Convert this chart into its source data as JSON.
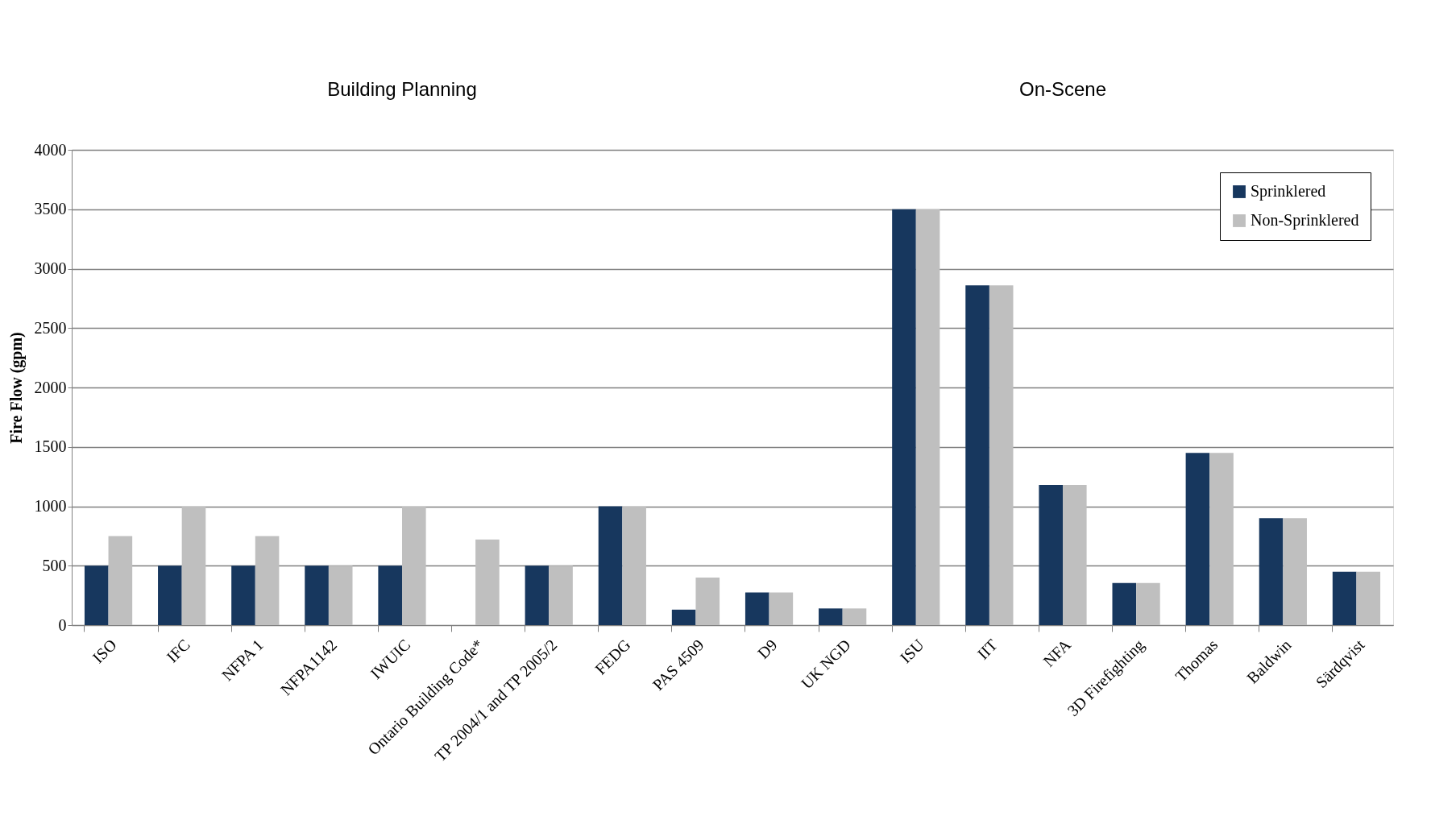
{
  "chart_data": {
    "type": "bar",
    "ylabel": "Fire Flow (gpm)",
    "categories": [
      "ISO",
      "IFC",
      "NFPA 1",
      "NFPA1142",
      "IWUIC",
      "Ontario Building Code*",
      "TP 2004/1 and TP 2005/2",
      "FEDG",
      "PAS 4509",
      "D9",
      "UK NGD",
      "ISU",
      "IIT",
      "NFA",
      "3D Firefighting",
      "Thomas",
      "Baldwin",
      "Särdqvist"
    ],
    "series": [
      {
        "name": "Sprinklered",
        "color": "#17375e",
        "values": [
          500,
          500,
          500,
          500,
          500,
          null,
          500,
          1000,
          130,
          275,
          140,
          3500,
          2860,
          1180,
          355,
          1450,
          900,
          450
        ]
      },
      {
        "name": "Non-Sprinklered",
        "color": "#bfbfbf",
        "values": [
          750,
          1000,
          750,
          500,
          1000,
          720,
          500,
          1000,
          400,
          275,
          140,
          3500,
          2860,
          1180,
          355,
          1450,
          900,
          450
        ]
      }
    ],
    "ylim": [
      0,
      4000
    ],
    "yticks": [
      0,
      500,
      1000,
      1500,
      2000,
      2500,
      3000,
      3500,
      4000
    ],
    "grid": "y",
    "legend": "top right",
    "annotations": [
      "Building Planning",
      "On-Scene"
    ]
  }
}
